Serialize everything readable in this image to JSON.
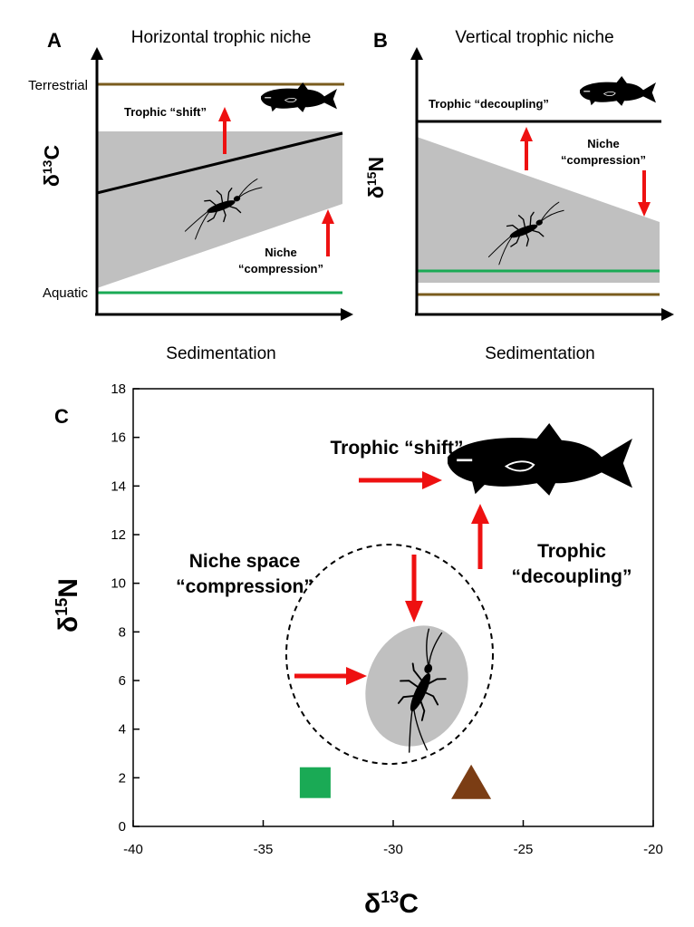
{
  "panelA": {
    "letter": "A",
    "title": "Horizontal trophic niche",
    "ylabel_main": "δ",
    "ylabel_sup": "13",
    "ylabel_tail": "C",
    "xlabel": "Sedimentation",
    "label_top": "Terrestrial",
    "label_bottom": "Aquatic",
    "shift_label": "Trophic “shift”",
    "compression_line1": "Niche",
    "compression_line2": "“compression”"
  },
  "panelB": {
    "letter": "B",
    "title": "Vertical trophic niche",
    "ylabel_main": "δ",
    "ylabel_sup": "15",
    "ylabel_tail": "N",
    "xlabel": "Sedimentation",
    "decoupling_label": "Trophic “decoupling”",
    "compression_line1": "Niche",
    "compression_line2": "“compression”"
  },
  "panelC": {
    "letter": "C",
    "xlabel_main": "δ",
    "xlabel_sup": "13",
    "xlabel_tail": "C",
    "ylabel_main": "δ",
    "ylabel_sup": "15",
    "ylabel_tail": "N",
    "shift_label": "Trophic “shift”",
    "niche_line1": "Niche space",
    "niche_line2": "“compression”",
    "decoupling_line1": "Trophic",
    "decoupling_line2": "“decoupling”"
  },
  "chart_data": {
    "type": "scatter",
    "xlim": [
      -40,
      -20
    ],
    "ylim": [
      0,
      18
    ],
    "x_ticks": [
      "-40",
      "-35",
      "-30",
      "-25",
      "-20"
    ],
    "y_ticks": [
      "0",
      "2",
      "4",
      "6",
      "8",
      "10",
      "12",
      "14",
      "16",
      "18"
    ],
    "points": [
      {
        "marker": "square",
        "x": -33,
        "y": 1.8,
        "color": "#1aaa55"
      },
      {
        "marker": "triangle",
        "x": -27,
        "y": 1.8,
        "color": "#7b3d14"
      }
    ]
  },
  "colors": {
    "terrestrial": "#7a5c1e",
    "aquatic": "#1aaa55",
    "arrow": "#ee1111",
    "niche_fill": "#c0c0c0"
  }
}
